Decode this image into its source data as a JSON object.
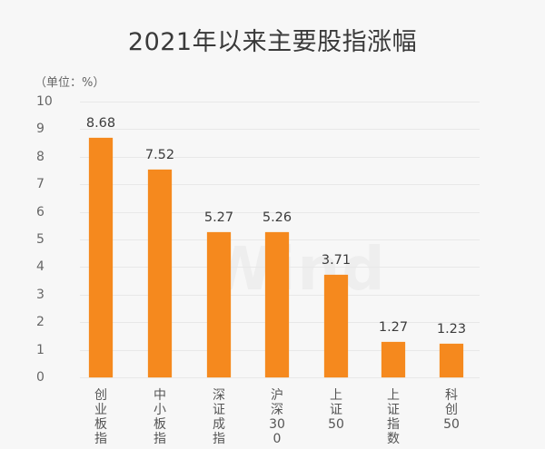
{
  "chart_data": {
    "type": "bar",
    "title": "2021年以来主要股指涨幅",
    "unit_label": "（单位：%）",
    "xlabel": "",
    "ylabel": "",
    "ylim": [
      0,
      10
    ],
    "yticks": [
      "0",
      "1",
      "2",
      "3",
      "4",
      "5",
      "6",
      "7",
      "8",
      "9",
      "10"
    ],
    "grid": true,
    "legend": null,
    "watermark": "Wind",
    "bar_color": "#f5891e",
    "categories": [
      "创业板指",
      "中小板指",
      "深证成指",
      "沪深300",
      "上证50",
      "上证指数",
      "科创50"
    ],
    "values": [
      8.68,
      7.52,
      5.27,
      5.26,
      3.71,
      1.27,
      1.23
    ],
    "value_labels": [
      "8.68",
      "7.52",
      "5.27",
      "5.26",
      "3.71",
      "1.27",
      "1.23"
    ]
  }
}
